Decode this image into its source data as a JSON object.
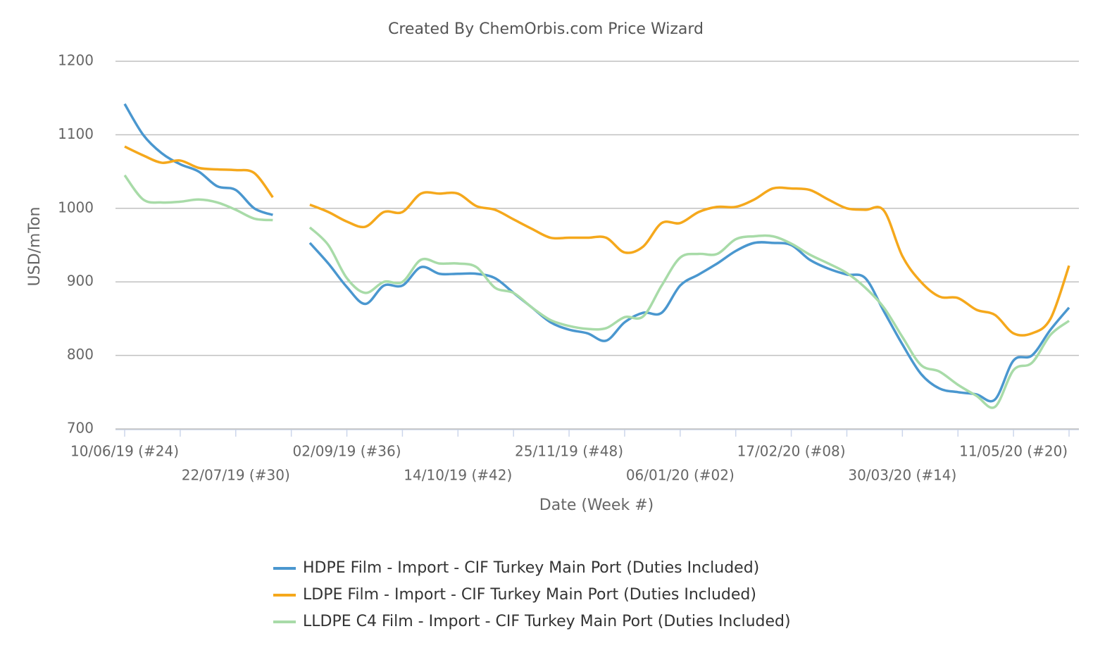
{
  "chart_data": {
    "type": "line",
    "title": "Created By ChemOrbis.com Price Wizard",
    "x_label": "Date (Week #)",
    "y_label": "USD/mTon",
    "categories": [
      "10/06/19 (#24)",
      null,
      null,
      null,
      null,
      null,
      "22/07/19 (#30)",
      null,
      null,
      null,
      null,
      null,
      "02/09/19 (#36)",
      null,
      null,
      null,
      null,
      null,
      "14/10/19 (#42)",
      null,
      null,
      null,
      null,
      null,
      "25/11/19 (#48)",
      null,
      null,
      null,
      null,
      null,
      "06/01/20 (#02)",
      null,
      null,
      null,
      null,
      null,
      "17/02/20 (#08)",
      null,
      null,
      null,
      null,
      null,
      "30/03/20 (#14)",
      null,
      null,
      null,
      null,
      null,
      "11/05/20 (#20)",
      null,
      null,
      null
    ],
    "ylim": [
      700,
      1200
    ],
    "yticks": [
      700,
      800,
      900,
      1000,
      1100,
      1200
    ],
    "grid": true,
    "legend": "bottom",
    "series": [
      {
        "name": "HDPE Film - Import - CIF Turkey Main Port (Duties Included)",
        "color": "#4a97cf",
        "values": [
          1142,
          1100,
          1075,
          1060,
          1050,
          1030,
          1025,
          1000,
          991,
          null,
          953,
          925,
          893,
          870,
          895,
          895,
          920,
          911,
          911,
          911,
          905,
          885,
          865,
          845,
          835,
          830,
          820,
          845,
          858,
          858,
          895,
          910,
          925,
          942,
          953,
          953,
          950,
          930,
          918,
          910,
          905,
          860,
          815,
          775,
          755,
          750,
          747,
          740,
          793,
          800,
          835,
          865
        ]
      },
      {
        "name": "LDPE Film - Import - CIF Turkey Main Port (Duties Included)",
        "color": "#f5a81c",
        "values": [
          1084,
          1072,
          1062,
          1065,
          1055,
          1053,
          1052,
          1048,
          1015,
          null,
          1005,
          995,
          982,
          975,
          995,
          995,
          1020,
          1020,
          1020,
          1003,
          998,
          985,
          972,
          960,
          960,
          960,
          960,
          940,
          948,
          980,
          980,
          995,
          1002,
          1002,
          1012,
          1027,
          1027,
          1025,
          1012,
          1000,
          998,
          997,
          935,
          900,
          880,
          878,
          862,
          855,
          830,
          830,
          850,
          922
        ]
      },
      {
        "name": "LLDPE C4 Film - Import - CIF Turkey Main Port (Duties Included)",
        "color": "#a8dba8",
        "values": [
          1045,
          1012,
          1008,
          1009,
          1012,
          1008,
          998,
          986,
          984,
          null,
          974,
          950,
          905,
          885,
          900,
          900,
          930,
          925,
          925,
          920,
          892,
          885,
          865,
          848,
          840,
          836,
          837,
          852,
          853,
          895,
          933,
          938,
          938,
          958,
          962,
          962,
          952,
          937,
          925,
          912,
          892,
          865,
          825,
          787,
          778,
          760,
          745,
          730,
          780,
          790,
          828,
          847
        ]
      }
    ]
  }
}
